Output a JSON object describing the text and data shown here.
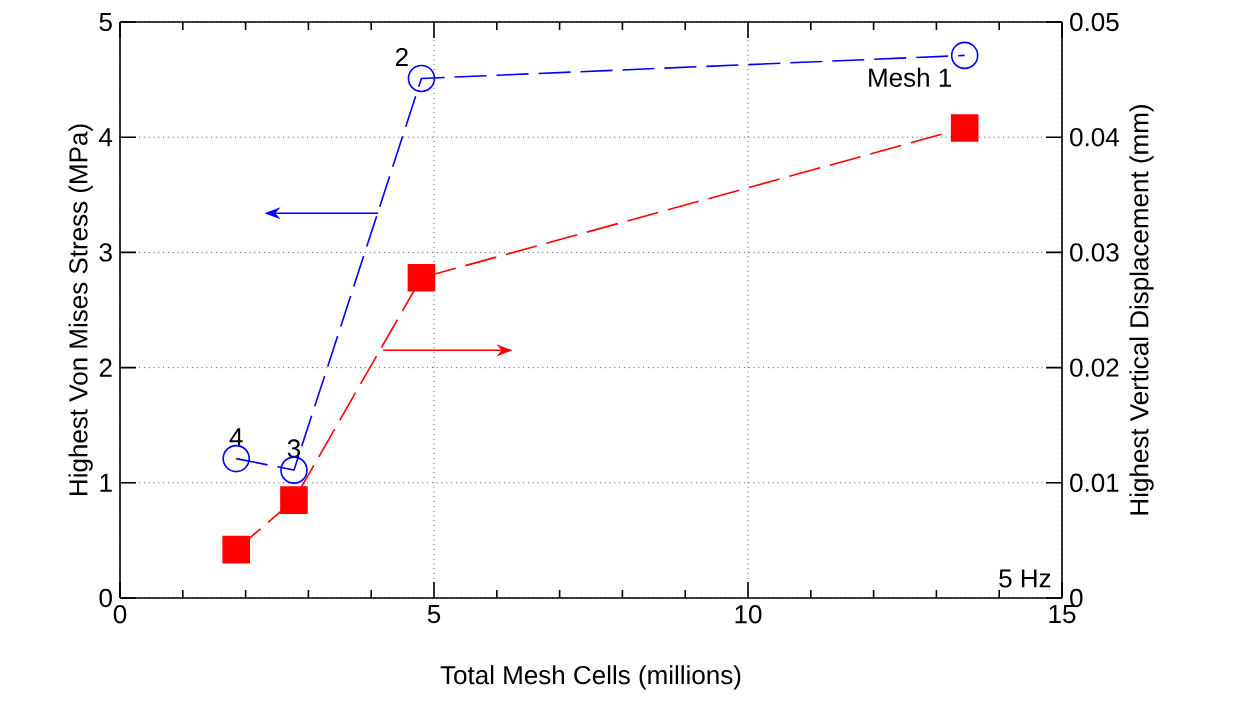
{
  "chart_data": {
    "type": "line",
    "xlabel": "Total Mesh Cells (millions)",
    "ylabel": "Highest Von Mises Stress (MPa)",
    "y2label": "Highest Vertical Displacement (mm)",
    "series": [
      {
        "color": "#0000ff",
        "marker": "circle",
        "line_style": "dashed",
        "x": [
          1.85,
          2.77,
          4.8,
          13.45
        ],
        "values": [
          1.21,
          1.11,
          4.51,
          4.71
        ]
      },
      {
        "color": "#ff0000",
        "marker": "square",
        "line_style": "dashed",
        "axis": "y2",
        "x": [
          1.85,
          2.77,
          4.8,
          13.45
        ],
        "values": [
          0.0042,
          0.0085,
          0.0278,
          0.0408
        ]
      }
    ],
    "xlim": [
      0,
      15
    ],
    "xticks": [
      0,
      5,
      10,
      15
    ],
    "ylim": [
      0,
      5
    ],
    "yticks": [
      0,
      1,
      2,
      3,
      4,
      5
    ],
    "y2lim": [
      0,
      0.05
    ],
    "y2ticks": [
      0,
      0.01,
      0.02,
      0.03,
      0.04,
      0.05
    ],
    "grid": true,
    "annotations": [
      {
        "text": "4",
        "x": 1.85,
        "y": 1.21
      },
      {
        "text": "3",
        "x": 2.77,
        "y": 1.11
      },
      {
        "text": "2",
        "x": 4.8,
        "y": 4.51
      },
      {
        "text": "Mesh 1",
        "x": 13.45,
        "y": 4.71
      },
      "5 Hz"
    ]
  }
}
